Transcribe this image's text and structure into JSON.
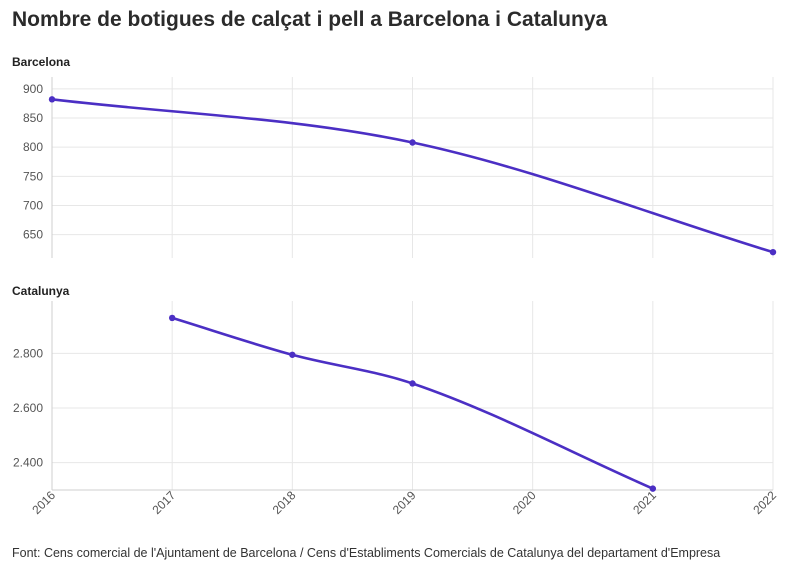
{
  "title": "Nombre de botigues de calçat i pell a Barcelona i Catalunya",
  "source": "Font: Cens comercial de l'Ajuntament de Barcelona / Cens d'Establiments Comercials de Catalunya del departament d'Empresa",
  "colors": {
    "series": "#4b2fc4",
    "grid": "#e7e7e7"
  },
  "chart_data": [
    {
      "type": "line",
      "title": "Barcelona",
      "x": [
        2016,
        2019,
        2022
      ],
      "values": [
        882,
        808,
        620
      ],
      "xlim": [
        2016,
        2022
      ],
      "ylim": [
        610,
        910
      ],
      "yticks": [
        650,
        700,
        750,
        800,
        850,
        900
      ],
      "ytick_labels": [
        "650",
        "700",
        "750",
        "800",
        "850",
        "900"
      ],
      "grid": true
    },
    {
      "type": "line",
      "title": "Catalunya",
      "x": [
        2017,
        2018,
        2019,
        2021
      ],
      "values": [
        2930,
        2795,
        2690,
        2305
      ],
      "xlim": [
        2016,
        2022
      ],
      "ylim": [
        2300,
        2970
      ],
      "yticks": [
        2400,
        2600,
        2800
      ],
      "ytick_labels": [
        "2.400",
        "2.600",
        "2.800"
      ],
      "xticks": [
        "2016",
        "2017",
        "2018",
        "2019",
        "2020",
        "2021",
        "2022"
      ],
      "grid": true
    }
  ]
}
